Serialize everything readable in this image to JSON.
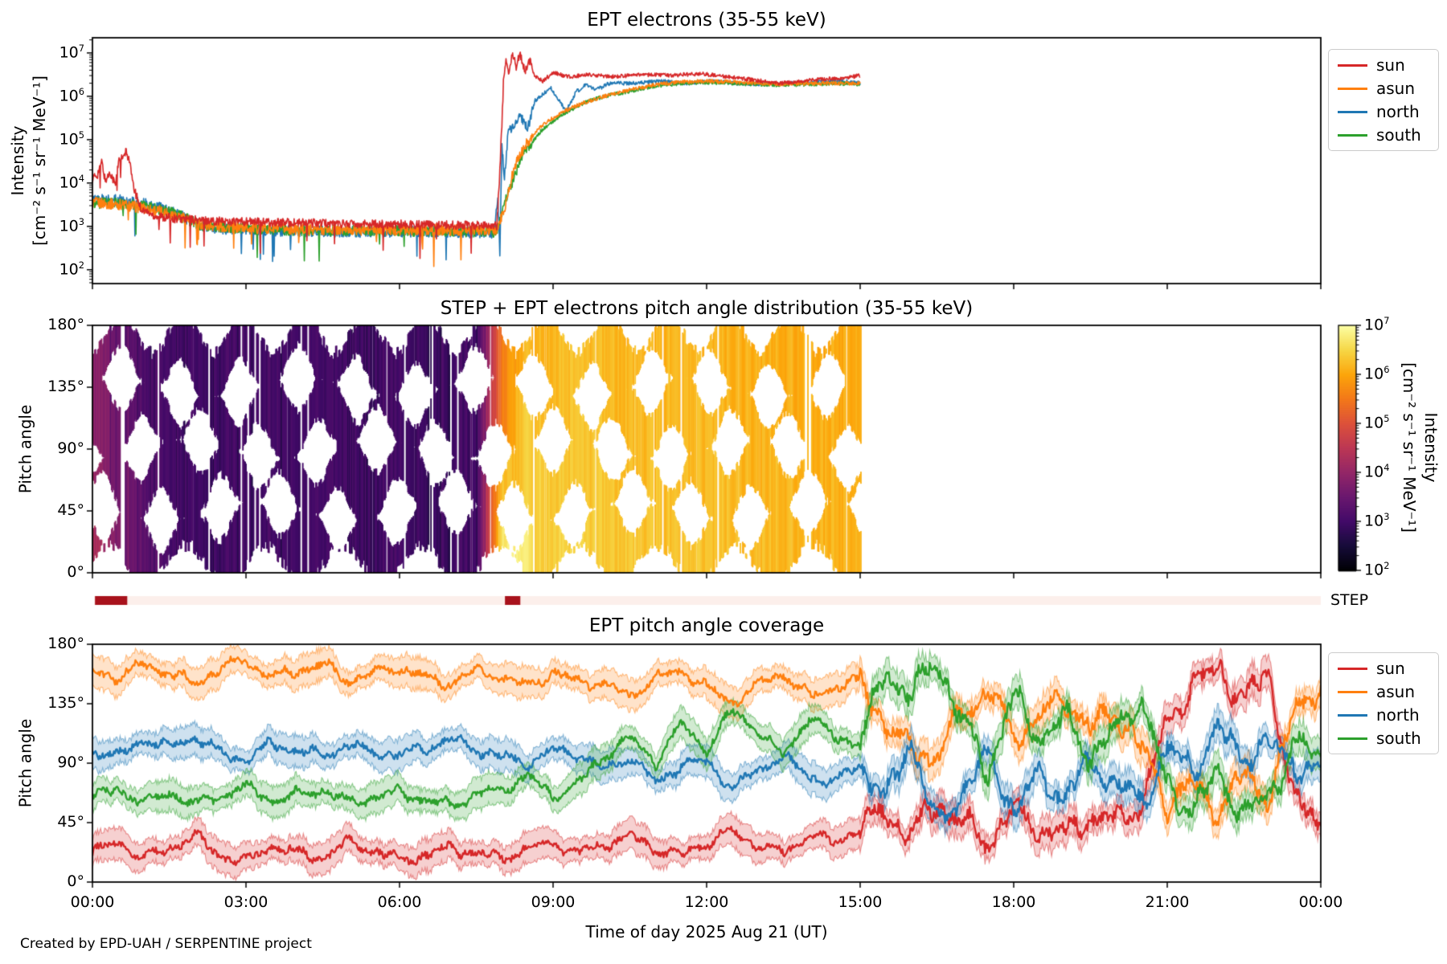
{
  "footer": {
    "text": "Created by EPD-UAH / SERPENTINE project"
  },
  "axis": {
    "xlabel": "Time of day 2025 Aug 21 (UT)",
    "x_tick_labels": [
      "00:00",
      "03:00",
      "06:00",
      "09:00",
      "12:00",
      "15:00",
      "18:00",
      "21:00",
      "00:00"
    ],
    "x_hours": [
      0,
      3,
      6,
      9,
      12,
      15,
      18,
      21,
      24
    ]
  },
  "legend": {
    "entries": [
      {
        "label": "sun",
        "color": "#d62728"
      },
      {
        "label": "asun",
        "color": "#ff7f0e"
      },
      {
        "label": "north",
        "color": "#1f77b4"
      },
      {
        "label": "south",
        "color": "#2ca02c"
      }
    ]
  },
  "step_bar": {
    "label": "STEP",
    "bg_color": "#fcefeb",
    "active_color": "#a8121c",
    "t_range": [
      0,
      24
    ],
    "active_intervals_h": [
      [
        0.05,
        0.68
      ],
      [
        8.06,
        8.36
      ]
    ]
  },
  "colorbar": {
    "label_line1": "Intensity",
    "label_line2": "[cm⁻² s⁻¹ sr⁻¹ MeV⁻¹]",
    "tick_exponents": [
      7,
      6,
      5,
      4,
      3,
      2
    ],
    "range_log": [
      2,
      7
    ]
  },
  "chart_data": [
    {
      "id": "ept_electrons",
      "type": "line",
      "title": "EPT electrons (35-55 keV)",
      "ylabel_line1": "Intensity",
      "ylabel_line2": "[cm⁻² s⁻¹ sr⁻¹ MeV⁻¹]",
      "ytick_exponents": [
        7,
        6,
        5,
        4,
        3,
        2
      ],
      "ylim_log": [
        1.68,
        7.35
      ],
      "x_range_h": [
        0,
        24
      ],
      "data_t_max": 15,
      "noise_log_pre": 0.13,
      "noise_log_post": 0.045,
      "series": [
        {
          "name": "sun",
          "color": "#d62728",
          "points_log10": [
            [
              0,
              4.1
            ],
            [
              0.1,
              4.2
            ],
            [
              0.18,
              4.5
            ],
            [
              0.25,
              4.05
            ],
            [
              0.35,
              4.25
            ],
            [
              0.45,
              3.95
            ],
            [
              0.52,
              4.6
            ],
            [
              0.6,
              4.55
            ],
            [
              0.65,
              4.72
            ],
            [
              0.72,
              4.55
            ],
            [
              0.8,
              3.9
            ],
            [
              0.95,
              3.4
            ],
            [
              1.2,
              3.25
            ],
            [
              1.6,
              3.18
            ],
            [
              2.5,
              3.12
            ],
            [
              4,
              3.08
            ],
            [
              6,
              3.05
            ],
            [
              7.9,
              3.02
            ],
            [
              7.97,
              4.5
            ],
            [
              8.03,
              6.3
            ],
            [
              8.08,
              6.75
            ],
            [
              8.13,
              6.55
            ],
            [
              8.2,
              6.95
            ],
            [
              8.28,
              6.7
            ],
            [
              8.35,
              6.97
            ],
            [
              8.45,
              6.6
            ],
            [
              8.55,
              6.78
            ],
            [
              8.65,
              6.45
            ],
            [
              8.8,
              6.35
            ],
            [
              9,
              6.55
            ],
            [
              9.3,
              6.45
            ],
            [
              9.7,
              6.5
            ],
            [
              10.2,
              6.45
            ],
            [
              10.8,
              6.5
            ],
            [
              11.3,
              6.48
            ],
            [
              11.9,
              6.52
            ],
            [
              12.4,
              6.45
            ],
            [
              12.9,
              6.38
            ],
            [
              13.4,
              6.3
            ],
            [
              13.8,
              6.34
            ],
            [
              14.3,
              6.4
            ],
            [
              14.7,
              6.42
            ],
            [
              15,
              6.48
            ]
          ]
        },
        {
          "name": "asun",
          "color": "#ff7f0e",
          "points_log10": [
            [
              0,
              3.55
            ],
            [
              0.6,
              3.5
            ],
            [
              1.1,
              3.4
            ],
            [
              1.6,
              3.28
            ],
            [
              2.1,
              3.05
            ],
            [
              2.6,
              2.98
            ],
            [
              3.5,
              2.95
            ],
            [
              5,
              2.92
            ],
            [
              6.5,
              2.93
            ],
            [
              7.9,
              2.9
            ],
            [
              8.05,
              3.4
            ],
            [
              8.25,
              4.4
            ],
            [
              8.5,
              4.95
            ],
            [
              8.8,
              5.35
            ],
            [
              9.2,
              5.65
            ],
            [
              9.6,
              5.85
            ],
            [
              10,
              6.0
            ],
            [
              10.5,
              6.15
            ],
            [
              11,
              6.27
            ],
            [
              11.5,
              6.33
            ],
            [
              12,
              6.35
            ],
            [
              12.5,
              6.33
            ],
            [
              13,
              6.3
            ],
            [
              13.5,
              6.28
            ],
            [
              14,
              6.3
            ],
            [
              14.5,
              6.3
            ],
            [
              15,
              6.3
            ]
          ]
        },
        {
          "name": "north",
          "color": "#1f77b4",
          "points_log10": [
            [
              0,
              3.62
            ],
            [
              0.6,
              3.6
            ],
            [
              1.1,
              3.5
            ],
            [
              1.6,
              3.32
            ],
            [
              2.1,
              3.02
            ],
            [
              2.6,
              2.93
            ],
            [
              3.5,
              2.9
            ],
            [
              5,
              2.87
            ],
            [
              6.5,
              2.88
            ],
            [
              7.85,
              2.85
            ],
            [
              7.92,
              3.7
            ],
            [
              7.96,
              2.4
            ],
            [
              8.0,
              4.9
            ],
            [
              8.05,
              4.1
            ],
            [
              8.12,
              5.15
            ],
            [
              8.22,
              5.35
            ],
            [
              8.35,
              5.55
            ],
            [
              8.5,
              5.25
            ],
            [
              8.65,
              5.9
            ],
            [
              8.8,
              6.05
            ],
            [
              8.95,
              6.2
            ],
            [
              9.1,
              5.95
            ],
            [
              9.25,
              5.65
            ],
            [
              9.45,
              6.1
            ],
            [
              9.65,
              6.28
            ],
            [
              9.85,
              6.15
            ],
            [
              10.1,
              6.3
            ],
            [
              10.6,
              6.3
            ],
            [
              11.1,
              6.35
            ],
            [
              11.6,
              6.3
            ],
            [
              12.1,
              6.35
            ],
            [
              12.6,
              6.3
            ],
            [
              13.1,
              6.28
            ],
            [
              13.6,
              6.3
            ],
            [
              14.1,
              6.32
            ],
            [
              14.6,
              6.36
            ],
            [
              15,
              6.3
            ]
          ]
        },
        {
          "name": "south",
          "color": "#2ca02c",
          "points_log10": [
            [
              0,
              3.55
            ],
            [
              0.6,
              3.52
            ],
            [
              1.1,
              3.45
            ],
            [
              1.6,
              3.3
            ],
            [
              2.1,
              3.03
            ],
            [
              3,
              2.95
            ],
            [
              4.5,
              2.9
            ],
            [
              6,
              2.9
            ],
            [
              7.9,
              2.88
            ],
            [
              8.1,
              3.7
            ],
            [
              8.4,
              4.65
            ],
            [
              8.8,
              5.25
            ],
            [
              9.2,
              5.6
            ],
            [
              9.6,
              5.85
            ],
            [
              10,
              6.0
            ],
            [
              10.5,
              6.12
            ],
            [
              11,
              6.24
            ],
            [
              11.5,
              6.3
            ],
            [
              12,
              6.32
            ],
            [
              12.5,
              6.3
            ],
            [
              13,
              6.28
            ],
            [
              13.5,
              6.26
            ],
            [
              14,
              6.28
            ],
            [
              14.5,
              6.3
            ],
            [
              15,
              6.28
            ]
          ]
        }
      ]
    },
    {
      "id": "pad_spectrogram",
      "type": "heatmap",
      "title": "STEP + EPT electrons pitch angle distribution (35-55 keV)",
      "ylabel": "Pitch angle",
      "ytick_deg": [
        180,
        135,
        90,
        45,
        0
      ],
      "data_t_max": 15,
      "colormap": [
        [
          0,
          "#000004"
        ],
        [
          0.1,
          "#160b39"
        ],
        [
          0.2,
          "#420a68"
        ],
        [
          0.3,
          "#6a176e"
        ],
        [
          0.4,
          "#932667"
        ],
        [
          0.5,
          "#bc3754"
        ],
        [
          0.6,
          "#dd513a"
        ],
        [
          0.7,
          "#f37819"
        ],
        [
          0.8,
          "#fca50a"
        ],
        [
          0.9,
          "#f6d746"
        ],
        [
          1,
          "#fcffa4"
        ]
      ],
      "texture": {
        "lens_period_h": 1.15,
        "lens_max_halfwidth_deg": 27,
        "edge_gap_deg": 24,
        "white_streak_prob": 0.12
      },
      "heatmap": {
        "t_start": 0,
        "t_step": 0.5,
        "pitch_rows": [
          0,
          45,
          90,
          135,
          180
        ],
        "log10_grid": [
          [
            4.45,
            4.25,
            4.05,
            3.95,
            3.9
          ],
          [
            3.95,
            3.75,
            3.6,
            3.55,
            3.5
          ],
          [
            3.45,
            3.35,
            3.25,
            3.2,
            3.2
          ],
          [
            3.1,
            3.05,
            3.05,
            3.0,
            3.05
          ],
          [
            3.05,
            3.0,
            3.05,
            3.05,
            3.0
          ],
          [
            3.0,
            3.05,
            3.0,
            3.05,
            3.05
          ],
          [
            3.05,
            3.0,
            3.05,
            3.0,
            3.05
          ],
          [
            3.0,
            3.05,
            3.05,
            3.05,
            3.0
          ],
          [
            3.05,
            3.0,
            3.0,
            3.05,
            3.05
          ],
          [
            3.0,
            3.05,
            3.05,
            3.0,
            3.05
          ],
          [
            3.05,
            3.0,
            3.05,
            3.05,
            3.0
          ],
          [
            3.0,
            3.05,
            3.0,
            3.05,
            3.05
          ],
          [
            3.05,
            3.05,
            3.0,
            3.0,
            3.05
          ],
          [
            3.0,
            3.0,
            3.05,
            3.05,
            3.0
          ],
          [
            3.05,
            3.0,
            3.0,
            3.05,
            3.05
          ],
          [
            3.0,
            3.05,
            3.05,
            3.0,
            3.0
          ],
          [
            7.0,
            6.5,
            6.0,
            5.6,
            5.3
          ],
          [
            6.75,
            6.5,
            6.35,
            6.25,
            6.15
          ],
          [
            6.55,
            6.4,
            6.3,
            6.25,
            6.2
          ],
          [
            6.5,
            6.35,
            6.3,
            6.25,
            6.2
          ],
          [
            6.45,
            6.35,
            6.3,
            6.25,
            6.2
          ],
          [
            6.4,
            6.3,
            6.25,
            6.2,
            6.2
          ],
          [
            6.35,
            6.3,
            6.25,
            6.2,
            6.15
          ],
          [
            6.35,
            6.25,
            6.2,
            6.2,
            6.15
          ],
          [
            6.3,
            6.25,
            6.2,
            6.15,
            6.15
          ],
          [
            6.3,
            6.25,
            6.2,
            6.15,
            6.1
          ],
          [
            6.25,
            6.2,
            6.15,
            6.15,
            6.1
          ],
          [
            6.25,
            6.2,
            6.15,
            6.1,
            6.1
          ],
          [
            6.2,
            6.15,
            6.15,
            6.1,
            6.05
          ],
          [
            6.2,
            6.15,
            6.1,
            6.1,
            6.05
          ],
          [
            6.15,
            6.1,
            6.1,
            6.05,
            6.05
          ]
        ]
      }
    },
    {
      "id": "ept_coverage",
      "type": "line",
      "title": "EPT pitch angle coverage",
      "ylabel": "Pitch angle",
      "ytick_deg": [
        180,
        135,
        90,
        45,
        0
      ],
      "t_step": 0.5,
      "band_halfwidth_deg": 10,
      "series": [
        {
          "name": "sun",
          "color": "#d62728",
          "values_deg": [
            22,
            30,
            18,
            25,
            35,
            20,
            15,
            28,
            22,
            18,
            30,
            24,
            16,
            20,
            26,
            22,
            18,
            25,
            30,
            22,
            28,
            35,
            25,
            20,
            30,
            38,
            28,
            22,
            35,
            30,
            40,
            55,
            35,
            60,
            45,
            30,
            55,
            40,
            35,
            50,
            45,
            60,
            120,
            150,
            160,
            140,
            155,
            60,
            42
          ]
        },
        {
          "name": "asun",
          "color": "#ff7f0e",
          "values_deg": [
            160,
            155,
            165,
            158,
            150,
            162,
            168,
            155,
            160,
            165,
            152,
            158,
            162,
            155,
            150,
            160,
            155,
            148,
            158,
            152,
            150,
            140,
            155,
            160,
            148,
            135,
            150,
            158,
            140,
            148,
            152,
            120,
            100,
            95,
            130,
            145,
            110,
            125,
            140,
            115,
            130,
            100,
            60,
            75,
            55,
            80,
            65,
            130,
            150
          ]
        },
        {
          "name": "north",
          "color": "#1f77b4",
          "values_deg": [
            100,
            95,
            108,
            102,
            110,
            98,
            92,
            105,
            100,
            95,
            104,
            98,
            96,
            102,
            108,
            100,
            95,
            90,
            100,
            96,
            85,
            95,
            75,
            88,
            92,
            70,
            85,
            95,
            80,
            75,
            90,
            60,
            110,
            40,
            70,
            95,
            55,
            80,
            65,
            90,
            75,
            60,
            100,
            85,
            115,
            95,
            105,
            90,
            80
          ]
        },
        {
          "name": "south",
          "color": "#2ca02c",
          "values_deg": [
            65,
            70,
            60,
            68,
            58,
            66,
            72,
            62,
            66,
            70,
            60,
            64,
            68,
            62,
            58,
            66,
            70,
            80,
            65,
            75,
            95,
            110,
            90,
            120,
            100,
            130,
            115,
            95,
            125,
            110,
            105,
            160,
            140,
            170,
            120,
            85,
            140,
            110,
            125,
            95,
            115,
            140,
            70,
            55,
            80,
            50,
            65,
            105,
            95
          ]
        }
      ]
    }
  ]
}
